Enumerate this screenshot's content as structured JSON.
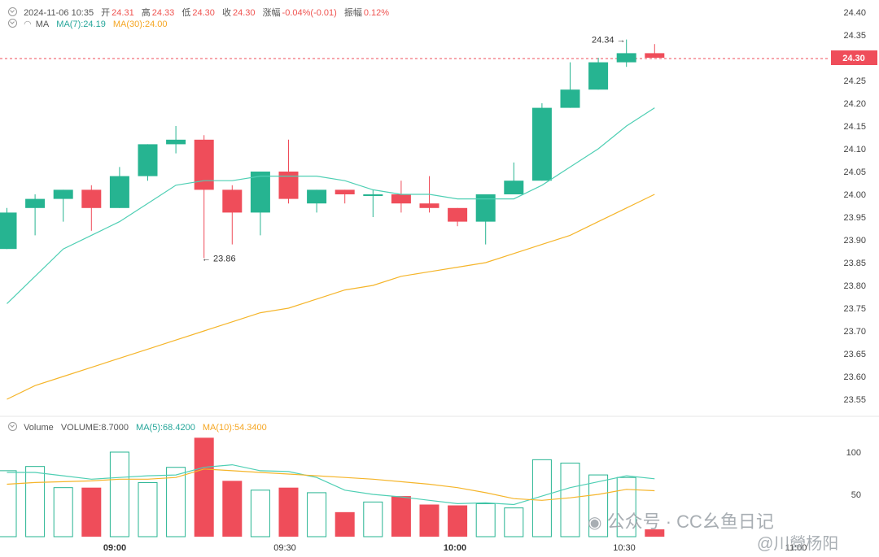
{
  "header": {
    "datetime": "2024-11-06 10:35",
    "open_label": "开",
    "open": "24.31",
    "high_label": "高",
    "high": "24.33",
    "low_label": "低",
    "low": "24.30",
    "close_label": "收",
    "close": "24.30",
    "change_label": "涨幅",
    "change": "-0.04%(-0.01)",
    "amplitude_label": "振幅",
    "amplitude": "0.12%",
    "ma_label": "MA",
    "ma7": "MA(7):24.19",
    "ma30": "MA(30):24.00"
  },
  "volume_header": {
    "label": "Volume",
    "volume": "VOLUME:8.7000",
    "ma5": "MA(5):68.4200",
    "ma10": "MA(10):54.3400"
  },
  "watermark": {
    "text1": "公众号 · CC幺鱼日记",
    "text2": "@川營杨阳"
  },
  "chart_data": {
    "type": "candlestick",
    "x_labels": [
      "09:00",
      "09:30",
      "10:00",
      "10:30",
      "11:00"
    ],
    "price_axis": {
      "ticks": [
        23.55,
        23.6,
        23.65,
        23.7,
        23.75,
        23.8,
        23.85,
        23.9,
        23.95,
        24.0,
        24.05,
        24.1,
        24.15,
        24.2,
        24.25,
        24.3,
        24.35,
        24.4
      ],
      "range": [
        23.52,
        24.42
      ]
    },
    "volume_axis": {
      "ticks": [
        50,
        100
      ]
    },
    "current_price": "24.30",
    "annotations": [
      {
        "text": "24.34",
        "value": 24.34
      },
      {
        "text": "23.86",
        "value": 23.86
      }
    ],
    "candles": [
      {
        "o": 23.88,
        "c": 23.96,
        "h": 23.97,
        "l": 23.88,
        "v": 78
      },
      {
        "o": 23.97,
        "c": 23.99,
        "h": 24.0,
        "l": 23.91,
        "v": 83
      },
      {
        "o": 23.99,
        "c": 24.01,
        "h": 24.01,
        "l": 23.94,
        "v": 58
      },
      {
        "o": 24.01,
        "c": 23.97,
        "h": 24.02,
        "l": 23.92,
        "v": 58
      },
      {
        "o": 23.97,
        "c": 24.04,
        "h": 24.06,
        "l": 23.97,
        "v": 100
      },
      {
        "o": 24.04,
        "c": 24.11,
        "h": 24.11,
        "l": 24.03,
        "v": 64
      },
      {
        "o": 24.11,
        "c": 24.12,
        "h": 24.15,
        "l": 24.09,
        "v": 82
      },
      {
        "o": 24.12,
        "c": 24.01,
        "h": 24.13,
        "l": 23.86,
        "v": 117
      },
      {
        "o": 24.01,
        "c": 23.96,
        "h": 24.02,
        "l": 23.89,
        "v": 66
      },
      {
        "o": 23.96,
        "c": 24.05,
        "h": 24.05,
        "l": 23.91,
        "v": 55
      },
      {
        "o": 24.05,
        "c": 23.99,
        "h": 24.12,
        "l": 23.98,
        "v": 58
      },
      {
        "o": 23.98,
        "c": 24.01,
        "h": 24.01,
        "l": 23.96,
        "v": 52
      },
      {
        "o": 24.01,
        "c": 24.0,
        "h": 24.01,
        "l": 23.98,
        "v": 29
      },
      {
        "o": 24.0,
        "c": 24.0,
        "h": 24.01,
        "l": 23.95,
        "v": 41
      },
      {
        "o": 24.0,
        "c": 23.98,
        "h": 24.03,
        "l": 23.96,
        "v": 48
      },
      {
        "o": 23.98,
        "c": 23.97,
        "h": 24.04,
        "l": 23.96,
        "v": 38
      },
      {
        "o": 23.97,
        "c": 23.94,
        "h": 23.97,
        "l": 23.93,
        "v": 37
      },
      {
        "o": 23.94,
        "c": 24.0,
        "h": 24.0,
        "l": 23.89,
        "v": 39
      },
      {
        "o": 24.0,
        "c": 24.03,
        "h": 24.07,
        "l": 24.0,
        "v": 34
      },
      {
        "o": 24.03,
        "c": 24.19,
        "h": 24.2,
        "l": 24.03,
        "v": 91
      },
      {
        "o": 24.19,
        "c": 24.23,
        "h": 24.29,
        "l": 24.19,
        "v": 87
      },
      {
        "o": 24.23,
        "c": 24.29,
        "h": 24.3,
        "l": 24.23,
        "v": 73
      },
      {
        "o": 24.29,
        "c": 24.31,
        "h": 24.34,
        "l": 24.28,
        "v": 70
      },
      {
        "o": 24.31,
        "c": 24.3,
        "h": 24.33,
        "l": 24.3,
        "v": 8.7
      }
    ],
    "ma7": [
      23.76,
      23.82,
      23.88,
      23.91,
      23.94,
      23.98,
      24.02,
      24.03,
      24.03,
      24.04,
      24.04,
      24.04,
      24.03,
      24.01,
      24.0,
      24.0,
      23.99,
      23.99,
      23.99,
      24.02,
      24.06,
      24.1,
      24.15,
      24.19
    ],
    "ma30": [
      23.55,
      23.58,
      23.6,
      23.62,
      23.64,
      23.66,
      23.68,
      23.7,
      23.72,
      23.74,
      23.75,
      23.77,
      23.79,
      23.8,
      23.82,
      23.83,
      23.84,
      23.85,
      23.87,
      23.89,
      23.91,
      23.94,
      23.97,
      24.0
    ],
    "vol_ma5": [
      76,
      76,
      72,
      68,
      70,
      72,
      73,
      82,
      85,
      78,
      77,
      70,
      55,
      50,
      47,
      43,
      39,
      40,
      38,
      48,
      58,
      65,
      72,
      68.42
    ],
    "vol_ma10": [
      62,
      64,
      65,
      66,
      68,
      68,
      70,
      80,
      78,
      76,
      74,
      72,
      70,
      68,
      65,
      62,
      58,
      52,
      45,
      43,
      46,
      50,
      56,
      54.34
    ],
    "colors": {
      "up": "#26b491",
      "down": "#ef4d5a",
      "ma7": "#4fcfb4",
      "ma30": "#f5b52a",
      "accent": "#ef4d5a"
    }
  }
}
